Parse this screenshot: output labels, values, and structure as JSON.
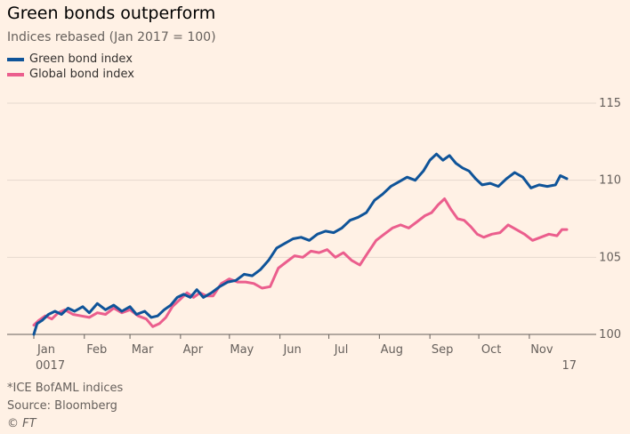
{
  "header": {
    "title": "Green bonds outperform",
    "subtitle": "Indices rebased (Jan 2017 = 100)"
  },
  "legend": {
    "items": [
      {
        "label": "Green bond index",
        "color": "#0f5499"
      },
      {
        "label": "Global bond index",
        "color": "#eb5e8d"
      }
    ]
  },
  "footer": {
    "note": "*ICE BofAML indices",
    "source": "Source: Bloomberg",
    "copyright": "© FT"
  },
  "chart_data": {
    "type": "line",
    "title": "Green bonds outperform",
    "subtitle": "Indices rebased (Jan 2017 = 100)",
    "xlabel": "",
    "ylabel": "",
    "x_range": [
      "2017-01-01",
      "2017-11-30"
    ],
    "ylim": [
      100,
      115
    ],
    "yticks": [
      100,
      105,
      110,
      115
    ],
    "grid": true,
    "legend_position": "top-left",
    "y_axis_side": "right",
    "xtick_labels": [
      "Jan",
      "Feb",
      "Mar",
      "Apr",
      "May",
      "Jun",
      "Jul",
      "Aug",
      "Sep",
      "Oct",
      "Nov"
    ],
    "xtick_dates": [
      "2017-01-01",
      "2017-02-01",
      "2017-03-01",
      "2017-04-01",
      "2017-05-01",
      "2017-06-01",
      "2017-07-01",
      "2017-08-01",
      "2017-09-01",
      "2017-10-01",
      "2017-11-01"
    ],
    "year_labels": [
      {
        "label": "0017",
        "date": "2017-01-01"
      },
      {
        "label": "17",
        "date": "2017-11-30"
      }
    ],
    "series": [
      {
        "name": "Green bond index",
        "color": "#0f5499",
        "points": [
          [
            "2017-01-01",
            100.0
          ],
          [
            "2017-01-03",
            100.7
          ],
          [
            "2017-01-06",
            100.9
          ],
          [
            "2017-01-10",
            101.3
          ],
          [
            "2017-01-14",
            101.5
          ],
          [
            "2017-01-18",
            101.3
          ],
          [
            "2017-01-22",
            101.7
          ],
          [
            "2017-01-26",
            101.5
          ],
          [
            "2017-01-31",
            101.8
          ],
          [
            "2017-02-04",
            101.4
          ],
          [
            "2017-02-09",
            102.0
          ],
          [
            "2017-02-14",
            101.6
          ],
          [
            "2017-02-19",
            101.9
          ],
          [
            "2017-02-24",
            101.5
          ],
          [
            "2017-03-01",
            101.8
          ],
          [
            "2017-03-05",
            101.3
          ],
          [
            "2017-03-10",
            101.5
          ],
          [
            "2017-03-14",
            101.1
          ],
          [
            "2017-03-18",
            101.2
          ],
          [
            "2017-03-22",
            101.6
          ],
          [
            "2017-03-26",
            101.9
          ],
          [
            "2017-03-30",
            102.4
          ],
          [
            "2017-04-03",
            102.6
          ],
          [
            "2017-04-07",
            102.4
          ],
          [
            "2017-04-11",
            102.9
          ],
          [
            "2017-04-15",
            102.4
          ],
          [
            "2017-04-20",
            102.7
          ],
          [
            "2017-04-25",
            103.1
          ],
          [
            "2017-04-30",
            103.4
          ],
          [
            "2017-05-05",
            103.5
          ],
          [
            "2017-05-10",
            103.9
          ],
          [
            "2017-05-15",
            103.8
          ],
          [
            "2017-05-20",
            104.2
          ],
          [
            "2017-05-25",
            104.8
          ],
          [
            "2017-05-30",
            105.6
          ],
          [
            "2017-06-04",
            105.9
          ],
          [
            "2017-06-09",
            106.2
          ],
          [
            "2017-06-14",
            106.3
          ],
          [
            "2017-06-19",
            106.1
          ],
          [
            "2017-06-24",
            106.5
          ],
          [
            "2017-06-29",
            106.7
          ],
          [
            "2017-07-04",
            106.6
          ],
          [
            "2017-07-09",
            106.9
          ],
          [
            "2017-07-14",
            107.4
          ],
          [
            "2017-07-19",
            107.6
          ],
          [
            "2017-07-24",
            107.9
          ],
          [
            "2017-07-29",
            108.7
          ],
          [
            "2017-08-03",
            109.1
          ],
          [
            "2017-08-08",
            109.6
          ],
          [
            "2017-08-13",
            109.9
          ],
          [
            "2017-08-18",
            110.2
          ],
          [
            "2017-08-23",
            110.0
          ],
          [
            "2017-08-28",
            110.6
          ],
          [
            "2017-09-01",
            111.3
          ],
          [
            "2017-09-05",
            111.7
          ],
          [
            "2017-09-09",
            111.3
          ],
          [
            "2017-09-13",
            111.6
          ],
          [
            "2017-09-17",
            111.1
          ],
          [
            "2017-09-21",
            110.8
          ],
          [
            "2017-09-25",
            110.6
          ],
          [
            "2017-09-29",
            110.1
          ],
          [
            "2017-10-03",
            109.7
          ],
          [
            "2017-10-08",
            109.8
          ],
          [
            "2017-10-13",
            109.6
          ],
          [
            "2017-10-18",
            110.1
          ],
          [
            "2017-10-23",
            110.5
          ],
          [
            "2017-10-28",
            110.2
          ],
          [
            "2017-11-02",
            109.5
          ],
          [
            "2017-11-07",
            109.7
          ],
          [
            "2017-11-12",
            109.6
          ],
          [
            "2017-11-17",
            109.7
          ],
          [
            "2017-11-20",
            110.3
          ],
          [
            "2017-11-24",
            110.1
          ]
        ]
      },
      {
        "name": "Global bond index",
        "color": "#eb5e8d",
        "points": [
          [
            "2017-01-01",
            100.6
          ],
          [
            "2017-01-04",
            100.9
          ],
          [
            "2017-01-08",
            101.2
          ],
          [
            "2017-01-12",
            101.0
          ],
          [
            "2017-01-16",
            101.4
          ],
          [
            "2017-01-20",
            101.6
          ],
          [
            "2017-01-25",
            101.3
          ],
          [
            "2017-01-30",
            101.2
          ],
          [
            "2017-02-04",
            101.1
          ],
          [
            "2017-02-09",
            101.4
          ],
          [
            "2017-02-14",
            101.3
          ],
          [
            "2017-02-19",
            101.7
          ],
          [
            "2017-02-24",
            101.4
          ],
          [
            "2017-03-01",
            101.6
          ],
          [
            "2017-03-06",
            101.2
          ],
          [
            "2017-03-11",
            101.0
          ],
          [
            "2017-03-15",
            100.5
          ],
          [
            "2017-03-19",
            100.7
          ],
          [
            "2017-03-23",
            101.1
          ],
          [
            "2017-03-27",
            101.8
          ],
          [
            "2017-04-01",
            102.3
          ],
          [
            "2017-04-05",
            102.7
          ],
          [
            "2017-04-09",
            102.4
          ],
          [
            "2017-04-13",
            102.7
          ],
          [
            "2017-04-17",
            102.5
          ],
          [
            "2017-04-21",
            102.5
          ],
          [
            "2017-04-26",
            103.3
          ],
          [
            "2017-05-01",
            103.6
          ],
          [
            "2017-05-06",
            103.4
          ],
          [
            "2017-05-11",
            103.4
          ],
          [
            "2017-05-16",
            103.3
          ],
          [
            "2017-05-21",
            103.0
          ],
          [
            "2017-05-26",
            103.1
          ],
          [
            "2017-05-31",
            104.3
          ],
          [
            "2017-06-05",
            104.7
          ],
          [
            "2017-06-10",
            105.1
          ],
          [
            "2017-06-15",
            105.0
          ],
          [
            "2017-06-20",
            105.4
          ],
          [
            "2017-06-25",
            105.3
          ],
          [
            "2017-06-30",
            105.5
          ],
          [
            "2017-07-05",
            105.0
          ],
          [
            "2017-07-10",
            105.3
          ],
          [
            "2017-07-15",
            104.8
          ],
          [
            "2017-07-20",
            104.5
          ],
          [
            "2017-07-25",
            105.3
          ],
          [
            "2017-07-30",
            106.1
          ],
          [
            "2017-08-04",
            106.5
          ],
          [
            "2017-08-09",
            106.9
          ],
          [
            "2017-08-14",
            107.1
          ],
          [
            "2017-08-19",
            106.9
          ],
          [
            "2017-08-24",
            107.3
          ],
          [
            "2017-08-29",
            107.7
          ],
          [
            "2017-09-02",
            107.9
          ],
          [
            "2017-09-06",
            108.4
          ],
          [
            "2017-09-10",
            108.8
          ],
          [
            "2017-09-14",
            108.1
          ],
          [
            "2017-09-18",
            107.5
          ],
          [
            "2017-09-22",
            107.4
          ],
          [
            "2017-09-26",
            107.0
          ],
          [
            "2017-09-30",
            106.5
          ],
          [
            "2017-10-04",
            106.3
          ],
          [
            "2017-10-09",
            106.5
          ],
          [
            "2017-10-14",
            106.6
          ],
          [
            "2017-10-19",
            107.1
          ],
          [
            "2017-10-24",
            106.8
          ],
          [
            "2017-10-29",
            106.5
          ],
          [
            "2017-11-03",
            106.1
          ],
          [
            "2017-11-08",
            106.3
          ],
          [
            "2017-11-13",
            106.5
          ],
          [
            "2017-11-18",
            106.4
          ],
          [
            "2017-11-21",
            106.8
          ],
          [
            "2017-11-24",
            106.8
          ]
        ]
      }
    ]
  }
}
